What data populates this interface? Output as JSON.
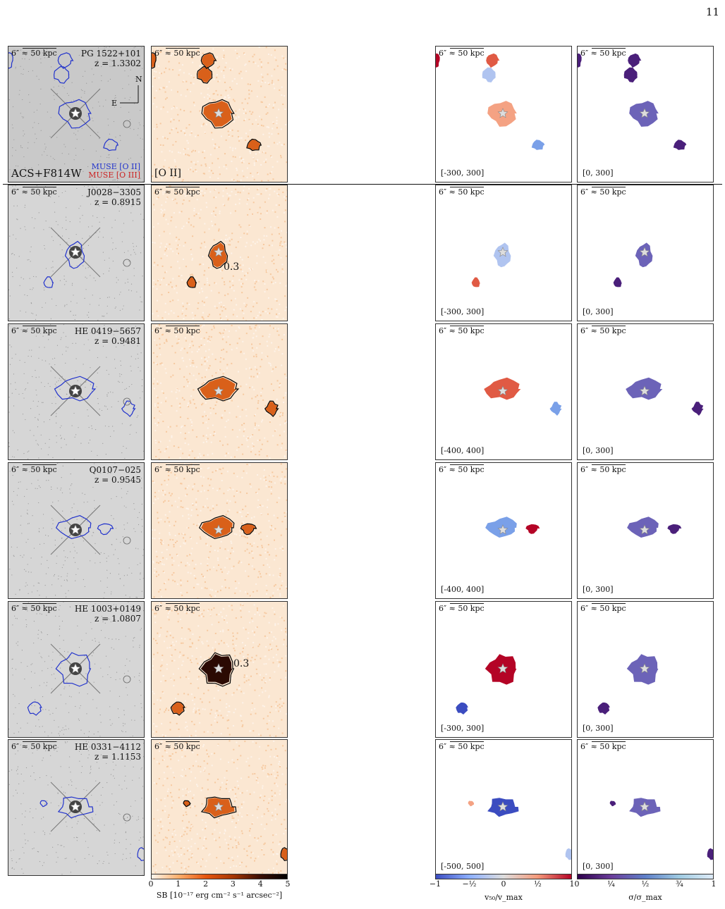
{
  "page_number": "11",
  "scale_label": "6″ ≈ 50 kpc",
  "top_row_labels": {
    "instrument": "ACS+F814W",
    "muse_oii": "MUSE [O II]",
    "muse_oiii": "MUSE [O III]",
    "oii_label": "[O II]",
    "compass_n": "N",
    "compass_e": "E"
  },
  "rows": [
    {
      "quasar": "PG 1522+101",
      "redshift": "z = 1.3302",
      "v_range": "[-300, 300]",
      "sigma_range": "[0, 300]",
      "sb_annotation": ""
    },
    {
      "quasar": "J0028−3305",
      "redshift": "z = 0.8915",
      "v_range": "[-300, 300]",
      "sigma_range": "[0, 300]",
      "sb_annotation": "0.3"
    },
    {
      "quasar": "HE 0419−5657",
      "redshift": "z = 0.9481",
      "v_range": "[-400, 400]",
      "sigma_range": "[0, 300]",
      "sb_annotation": ""
    },
    {
      "quasar": "Q0107−025",
      "redshift": "z = 0.9545",
      "v_range": "[-400, 400]",
      "sigma_range": "[0, 300]",
      "sb_annotation": ""
    },
    {
      "quasar": "HE 1003+0149",
      "redshift": "z = 1.0807",
      "v_range": "[-300, 300]",
      "sigma_range": "[0, 300]",
      "sb_annotation": "0.3"
    },
    {
      "quasar": "HE 0331−4112",
      "redshift": "z = 1.1153",
      "v_range": "[-500, 500]",
      "sigma_range": "[0, 300]",
      "sb_annotation": ""
    }
  ],
  "colorbars": {
    "sb": {
      "ticks": [
        "0",
        "1",
        "2",
        "3",
        "4",
        "5"
      ],
      "label": "SB [10⁻¹⁷ erg cm⁻² s⁻¹ arcsec⁻²]",
      "colors": [
        "#fff5eb",
        "#fdae6b",
        "#e6550d",
        "#a63603",
        "#3b0f04",
        "#000000"
      ]
    },
    "velocity": {
      "ticks": [
        "−1",
        "−½",
        "0",
        "½",
        "1"
      ],
      "label": "v₅₀/v_max",
      "colors": [
        "#3b4cc0",
        "#8db0fe",
        "#dddddd",
        "#f49a7b",
        "#b40426"
      ]
    },
    "sigma": {
      "ticks": [
        "0",
        "¼",
        "½",
        "¾",
        "1"
      ],
      "label": "σ/σ_max",
      "colors": [
        "#2d004b",
        "#6a3d9a",
        "#5e7fc8",
        "#9ecae1",
        "#deebf7"
      ]
    }
  }
}
